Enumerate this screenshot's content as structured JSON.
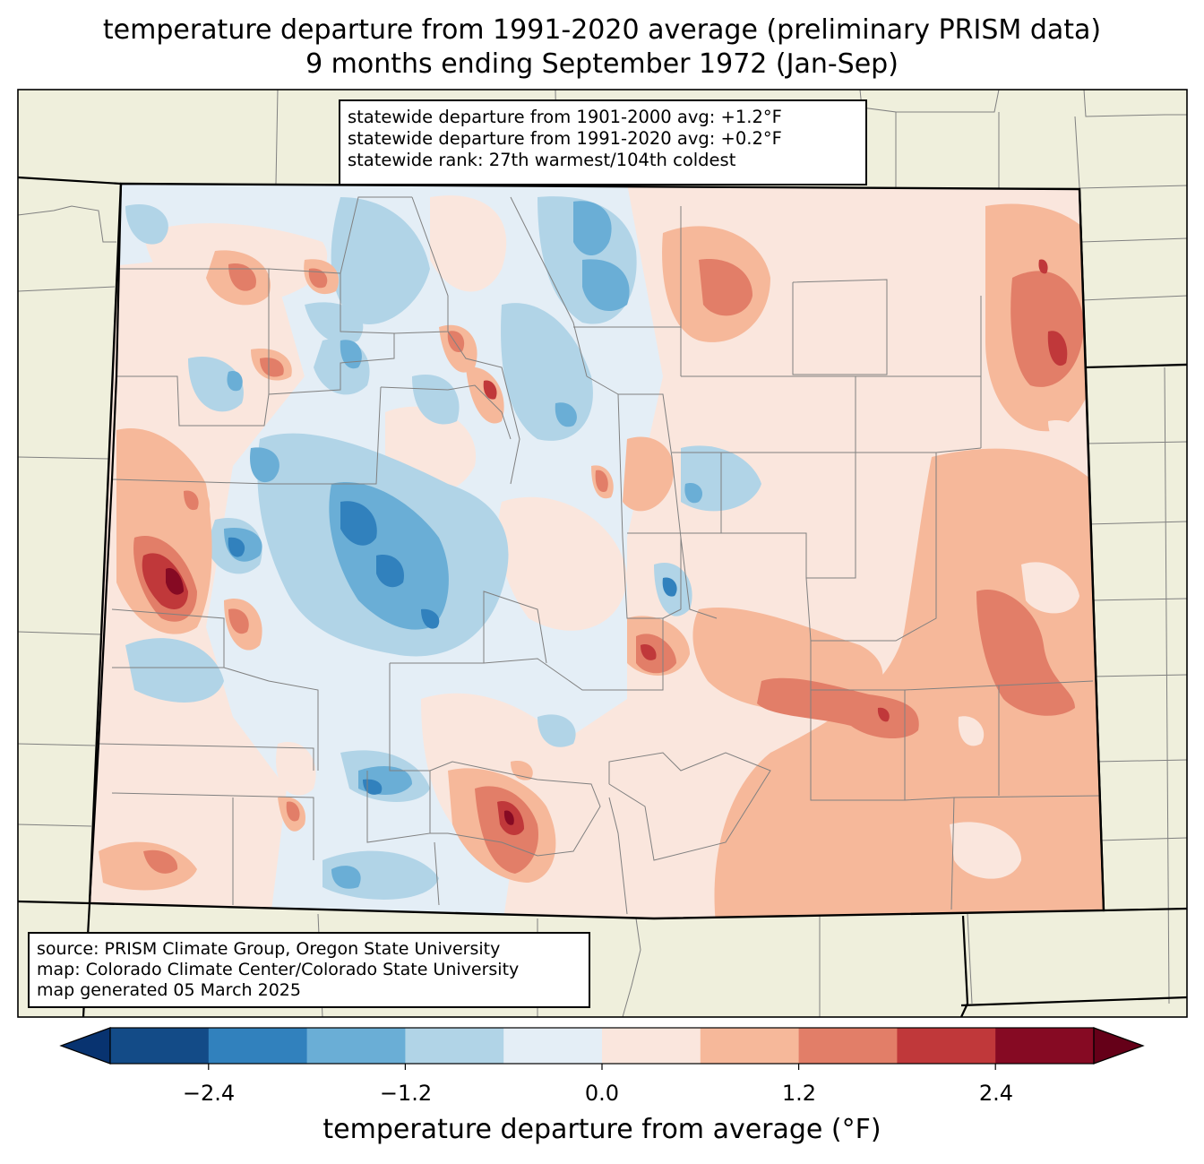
{
  "title": {
    "line1": "temperature departure from 1991-2020 average (preliminary PRISM data)",
    "line2": "9 months ending September 1972 (Jan-Sep)"
  },
  "stats": {
    "line1": "statewide departure from 1901-2000 avg: +1.2°F",
    "line2": "statewide departure from 1991-2020 avg: +0.2°F",
    "line3": "statewide rank: 27th warmest/104th coldest"
  },
  "source": {
    "line1": "source: PRISM Climate Group, Oregon State University",
    "line2": "map: Colorado Climate Center/Colorado State University",
    "line3": "map generated 05 March 2025"
  },
  "colorbar": {
    "label": "temperature departure from average (°F)",
    "ticks": [
      "−2.4",
      "−1.2",
      "0.0",
      "1.2",
      "2.4"
    ],
    "bounds": [
      -3.0,
      -2.4,
      -1.8,
      -1.2,
      -0.6,
      0.0,
      0.6,
      1.2,
      1.8,
      2.4,
      3.0
    ],
    "colors": [
      "#083370",
      "#134b87",
      "#3181bd",
      "#6aaed6",
      "#b1d4e7",
      "#e4eef6",
      "#fae6dd",
      "#f6b89a",
      "#e27e68",
      "#c0383a",
      "#860a23",
      "#650018"
    ]
  },
  "map": {
    "land_color": "#efefdc",
    "state_border_color": "#000000",
    "county_line_color": "#808080"
  }
}
